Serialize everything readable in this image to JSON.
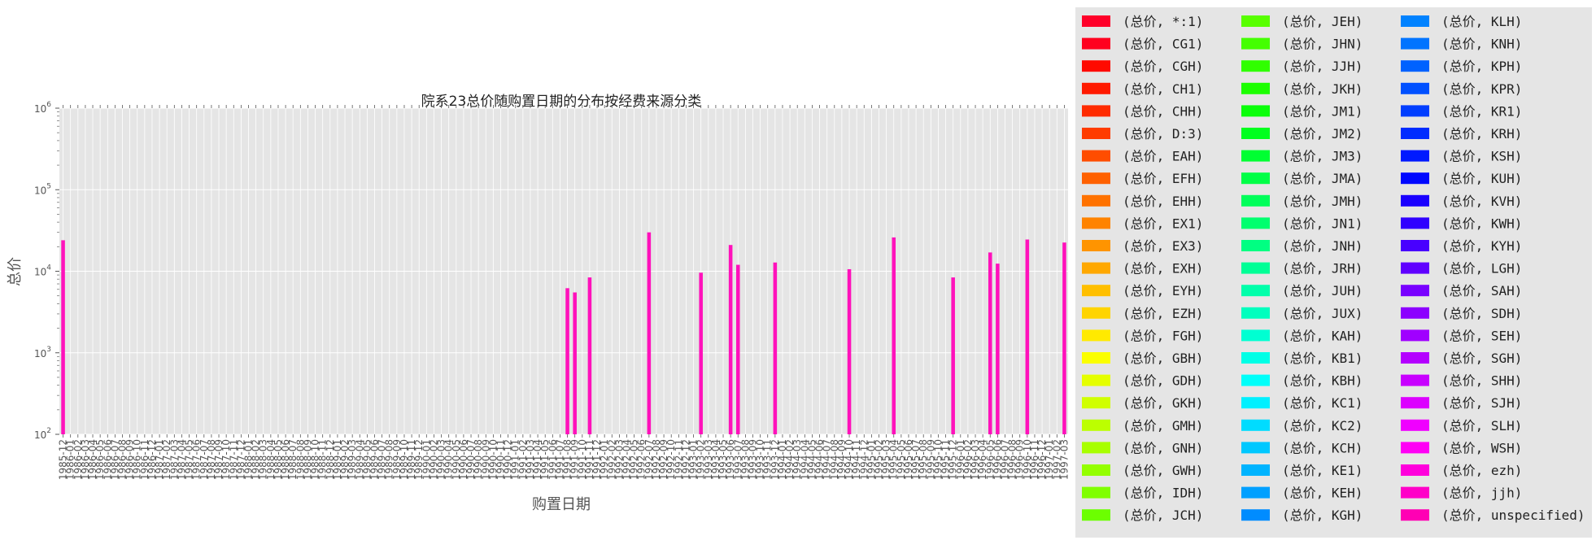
{
  "chart_data": {
    "type": "bar",
    "title": "院系23总价随购置日期的分布按经费来源分类",
    "xlabel": "购置日期",
    "ylabel": "总价",
    "yscale": "log",
    "ylim": [
      100,
      1000000
    ],
    "y_ticks": [
      {
        "value": 100,
        "base": "10",
        "exp": "2"
      },
      {
        "value": 1000,
        "base": "10",
        "exp": "3"
      },
      {
        "value": 10000,
        "base": "10",
        "exp": "4"
      },
      {
        "value": 100000,
        "base": "10",
        "exp": "5"
      },
      {
        "value": 1000000,
        "base": "10",
        "exp": "6"
      }
    ],
    "grid": true,
    "legend_placement": "right, outside plot, 3 columns",
    "bar_color": "#ff11bb",
    "plot_background": "#e5e5e5",
    "categories": [
      "1985-12",
      "1986-01",
      "1986-02",
      "1986-03",
      "1986-04",
      "1986-05",
      "1986-06",
      "1986-07",
      "1986-08",
      "1986-09",
      "1986-10",
      "1986-11",
      "1986-12",
      "1987-01",
      "1987-02",
      "1987-03",
      "1987-04",
      "1987-05",
      "1987-06",
      "1987-07",
      "1987-08",
      "1987-09",
      "1987-10",
      "1987-11",
      "1987-12",
      "1988-01",
      "1988-02",
      "1988-03",
      "1988-04",
      "1988-05",
      "1988-06",
      "1988-07",
      "1988-08",
      "1988-09",
      "1988-10",
      "1988-11",
      "1988-12",
      "1989-01",
      "1989-02",
      "1989-03",
      "1989-04",
      "1989-05",
      "1989-06",
      "1989-07",
      "1989-08",
      "1989-09",
      "1989-10",
      "1989-11",
      "1989-12",
      "1990-01",
      "1990-02",
      "1990-03",
      "1990-04",
      "1990-05",
      "1990-06",
      "1990-07",
      "1990-08",
      "1990-09",
      "1990-10",
      "1990-11",
      "1990-12",
      "1991-01",
      "1991-02",
      "1991-03",
      "1991-04",
      "1991-05",
      "1991-06",
      "1991-07",
      "1991-08",
      "1991-09",
      "1991-10",
      "1991-11",
      "1991-12",
      "1992-01",
      "1992-02",
      "1992-03",
      "1992-04",
      "1992-05",
      "1992-06",
      "1992-07",
      "1992-08",
      "1992-09",
      "1992-10",
      "1992-11",
      "1992-12",
      "1993-01",
      "1993-02",
      "1993-03",
      "1993-04",
      "1993-05",
      "1993-06",
      "1993-07",
      "1993-08",
      "1993-09",
      "1993-10",
      "1993-11",
      "1993-12",
      "1994-01",
      "1994-02",
      "1994-03",
      "1994-04",
      "1994-05",
      "1994-06",
      "1994-07",
      "1994-08",
      "1994-09",
      "1994-10",
      "1994-11",
      "1994-12",
      "1995-01",
      "1995-02",
      "1995-03",
      "1995-04",
      "1995-05",
      "1995-06",
      "1995-07",
      "1995-08",
      "1995-09",
      "1995-10",
      "1995-11",
      "1995-12",
      "1996-01",
      "1996-02",
      "1996-03",
      "1996-04",
      "1996-05",
      "1996-06",
      "1996-07",
      "1996-08",
      "1996-09",
      "1996-10",
      "1996-11",
      "1996-12",
      "1997-01",
      "1997-02",
      "1997-03"
    ],
    "bars": [
      {
        "date": "1985-12",
        "value": 24000
      },
      {
        "date": "1991-08",
        "value": 6200
      },
      {
        "date": "1991-09",
        "value": 5500
      },
      {
        "date": "1991-11",
        "value": 8400
      },
      {
        "date": "1992-07",
        "value": 30000
      },
      {
        "date": "1993-02",
        "value": 9600
      },
      {
        "date": "1993-06",
        "value": 21000
      },
      {
        "date": "1993-07",
        "value": 12000
      },
      {
        "date": "1993-12",
        "value": 12800
      },
      {
        "date": "1994-10",
        "value": 10600
      },
      {
        "date": "1995-04",
        "value": 26000
      },
      {
        "date": "1995-12",
        "value": 8400
      },
      {
        "date": "1996-05",
        "value": 17000
      },
      {
        "date": "1996-06",
        "value": 12400
      },
      {
        "date": "1996-10",
        "value": 24500
      },
      {
        "date": "1997-03",
        "value": 22500
      }
    ],
    "legend": [
      {
        "label": "(总价, *:1)",
        "color": "#ff0029"
      },
      {
        "label": "(总价, CG1)",
        "color": "#ff001f"
      },
      {
        "label": "(总价, CGH)",
        "color": "#ff0a00"
      },
      {
        "label": "(总价, CH1)",
        "color": "#ff1a00"
      },
      {
        "label": "(总价, CHH)",
        "color": "#ff2b00"
      },
      {
        "label": "(总价, D:3)",
        "color": "#ff3c00"
      },
      {
        "label": "(总价, EAH)",
        "color": "#ff4d00"
      },
      {
        "label": "(总价, EFH)",
        "color": "#ff6100"
      },
      {
        "label": "(总价, EHH)",
        "color": "#ff7200"
      },
      {
        "label": "(总价, EX1)",
        "color": "#ff8300"
      },
      {
        "label": "(总价, EX3)",
        "color": "#ff9400"
      },
      {
        "label": "(总价, EXH)",
        "color": "#ffa800"
      },
      {
        "label": "(总价, EYH)",
        "color": "#ffbf00"
      },
      {
        "label": "(总价, EZH)",
        "color": "#ffd400"
      },
      {
        "label": "(总价, FGH)",
        "color": "#ffea00"
      },
      {
        "label": "(总价, GBH)",
        "color": "#fbff00"
      },
      {
        "label": "(总价, GDH)",
        "color": "#e5ff00"
      },
      {
        "label": "(总价, GKH)",
        "color": "#d0ff00"
      },
      {
        "label": "(总价, GMH)",
        "color": "#bcff00"
      },
      {
        "label": "(总价, GNH)",
        "color": "#a8ff00"
      },
      {
        "label": "(总价, GWH)",
        "color": "#94ff00"
      },
      {
        "label": "(总价, IDH)",
        "color": "#80ff00"
      },
      {
        "label": "(总价, JCH)",
        "color": "#6cff00"
      },
      {
        "label": "(总价, JEH)",
        "color": "#58ff00"
      },
      {
        "label": "(总价, JHN)",
        "color": "#44ff00"
      },
      {
        "label": "(总价, JJH)",
        "color": "#30ff00"
      },
      {
        "label": "(总价, JKH)",
        "color": "#1cff00"
      },
      {
        "label": "(总价, JM1)",
        "color": "#0aff0a"
      },
      {
        "label": "(总价, JM2)",
        "color": "#00ff1e"
      },
      {
        "label": "(总价, JM3)",
        "color": "#00ff32"
      },
      {
        "label": "(总价, JMA)",
        "color": "#00ff46"
      },
      {
        "label": "(总价, JMH)",
        "color": "#00ff5a"
      },
      {
        "label": "(总价, JN1)",
        "color": "#00ff6e"
      },
      {
        "label": "(总价, JNH)",
        "color": "#00ff82"
      },
      {
        "label": "(总价, JRH)",
        "color": "#00ff96"
      },
      {
        "label": "(总价, JUH)",
        "color": "#00ffaa"
      },
      {
        "label": "(总价, JUX)",
        "color": "#00ffbe"
      },
      {
        "label": "(总价, KAH)",
        "color": "#00ffd2"
      },
      {
        "label": "(总价, KB1)",
        "color": "#00ffe6"
      },
      {
        "label": "(总价, KBH)",
        "color": "#00fffa"
      },
      {
        "label": "(总价, KC1)",
        "color": "#00f0ff"
      },
      {
        "label": "(总价, KC2)",
        "color": "#00dcff"
      },
      {
        "label": "(总价, KCH)",
        "color": "#00c8ff"
      },
      {
        "label": "(总价, KE1)",
        "color": "#00b4ff"
      },
      {
        "label": "(总价, KEH)",
        "color": "#00a0ff"
      },
      {
        "label": "(总价, KGH)",
        "color": "#008cff"
      },
      {
        "label": "(总价, KLH)",
        "color": "#0082ff"
      },
      {
        "label": "(总价, KNH)",
        "color": "#0074ff"
      },
      {
        "label": "(总价, KPH)",
        "color": "#0062ff"
      },
      {
        "label": "(总价, KPR)",
        "color": "#0050ff"
      },
      {
        "label": "(总价, KR1)",
        "color": "#003eff"
      },
      {
        "label": "(总价, KRH)",
        "color": "#002cff"
      },
      {
        "label": "(总价, KSH)",
        "color": "#001aff"
      },
      {
        "label": "(总价, KUH)",
        "color": "#0008ff"
      },
      {
        "label": "(总价, KVH)",
        "color": "#1a00ff"
      },
      {
        "label": "(总价, KWH)",
        "color": "#3000ff"
      },
      {
        "label": "(总价, KYH)",
        "color": "#4800ff"
      },
      {
        "label": "(总价, LGH)",
        "color": "#6000ff"
      },
      {
        "label": "(总价, SAH)",
        "color": "#7800ff"
      },
      {
        "label": "(总价, SDH)",
        "color": "#8c00ff"
      },
      {
        "label": "(总价, SEH)",
        "color": "#a000ff"
      },
      {
        "label": "(总价, SGH)",
        "color": "#b400ff"
      },
      {
        "label": "(总价, SHH)",
        "color": "#c800ff"
      },
      {
        "label": "(总价, SJH)",
        "color": "#dc00ff"
      },
      {
        "label": "(总价, SLH)",
        "color": "#f000ff"
      },
      {
        "label": "(总价, WSH)",
        "color": "#ff00f5"
      },
      {
        "label": "(总价, ezh)",
        "color": "#ff00dc"
      },
      {
        "label": "(总价, jjh)",
        "color": "#ff00c8"
      },
      {
        "label": "(总价, unspecified)",
        "color": "#ff00b4"
      }
    ]
  }
}
